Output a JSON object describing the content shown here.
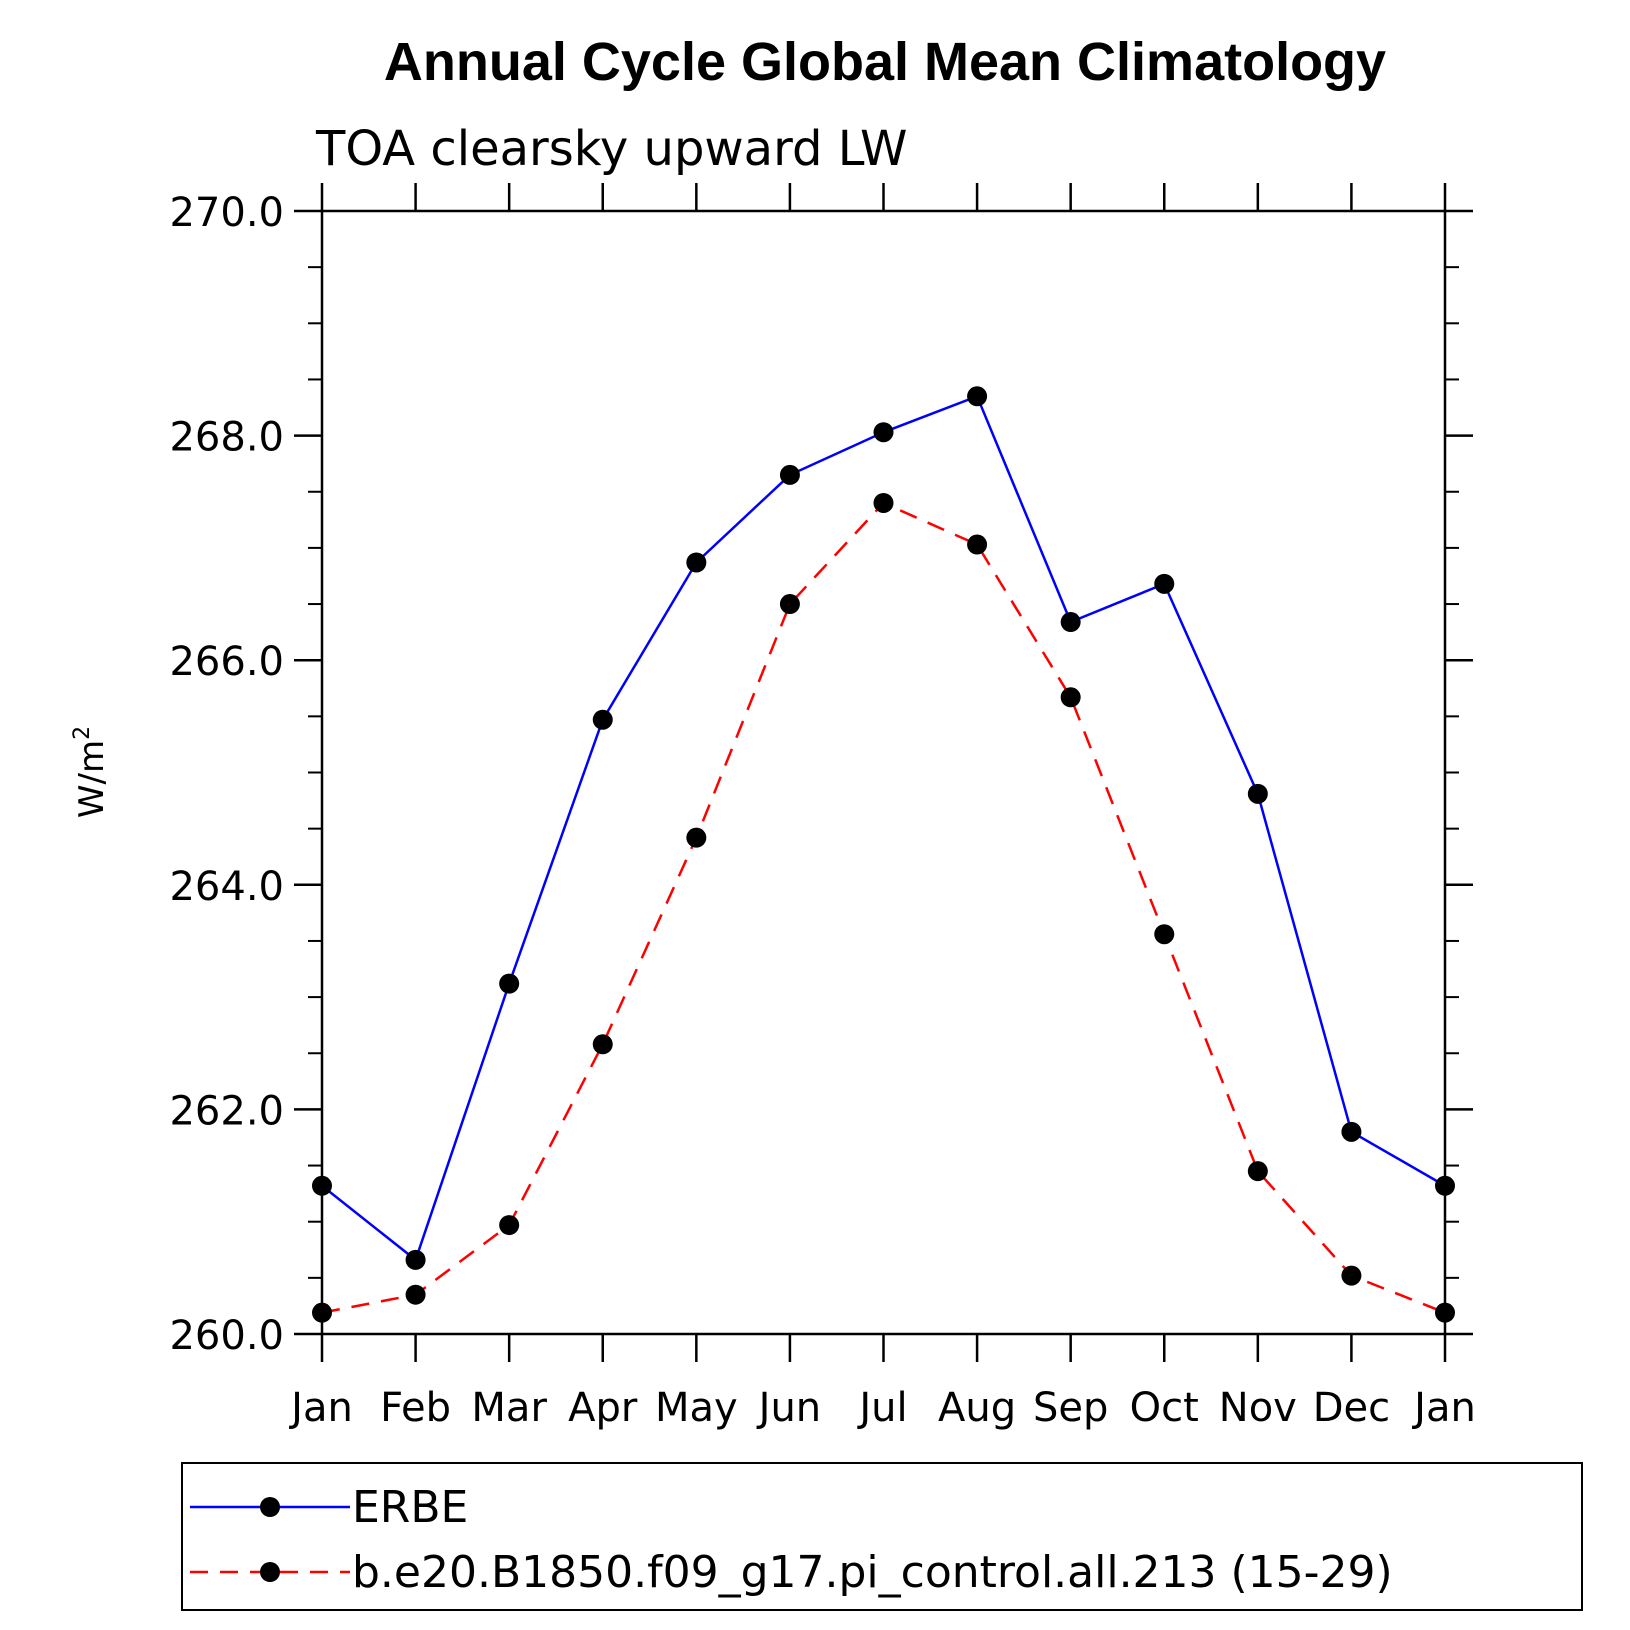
{
  "chart_data": {
    "type": "line",
    "title": "Annual Cycle Global Mean Climatology",
    "subtitle": "TOA clearsky upward LW",
    "ylabel": "W/m",
    "ylabel_superscript": "2",
    "ylim": [
      260.0,
      270.0
    ],
    "yticks": [
      "260.0",
      "262.0",
      "264.0",
      "266.0",
      "268.0",
      "270.0"
    ],
    "ytick_values": [
      260,
      262,
      264,
      266,
      268,
      270
    ],
    "categories": [
      "Jan",
      "Feb",
      "Mar",
      "Apr",
      "May",
      "Jun",
      "Jul",
      "Aug",
      "Sep",
      "Oct",
      "Nov",
      "Dec",
      "Jan"
    ],
    "series": [
      {
        "name": "ERBE",
        "color": "#0000ff",
        "dashed": false,
        "values": [
          261.32,
          260.66,
          263.12,
          265.47,
          266.87,
          267.65,
          268.03,
          268.35,
          266.34,
          266.68,
          264.81,
          261.8,
          261.32
        ]
      },
      {
        "name": "b.e20.B1850.f09_g17.pi_control.all.213 (15-29)",
        "color": "#ff0000",
        "dashed": true,
        "values": [
          260.19,
          260.35,
          260.97,
          262.58,
          264.42,
          266.5,
          267.4,
          267.03,
          265.67,
          263.56,
          261.45,
          260.52,
          260.19
        ]
      }
    ],
    "grid": false,
    "legend_position": "bottom"
  }
}
